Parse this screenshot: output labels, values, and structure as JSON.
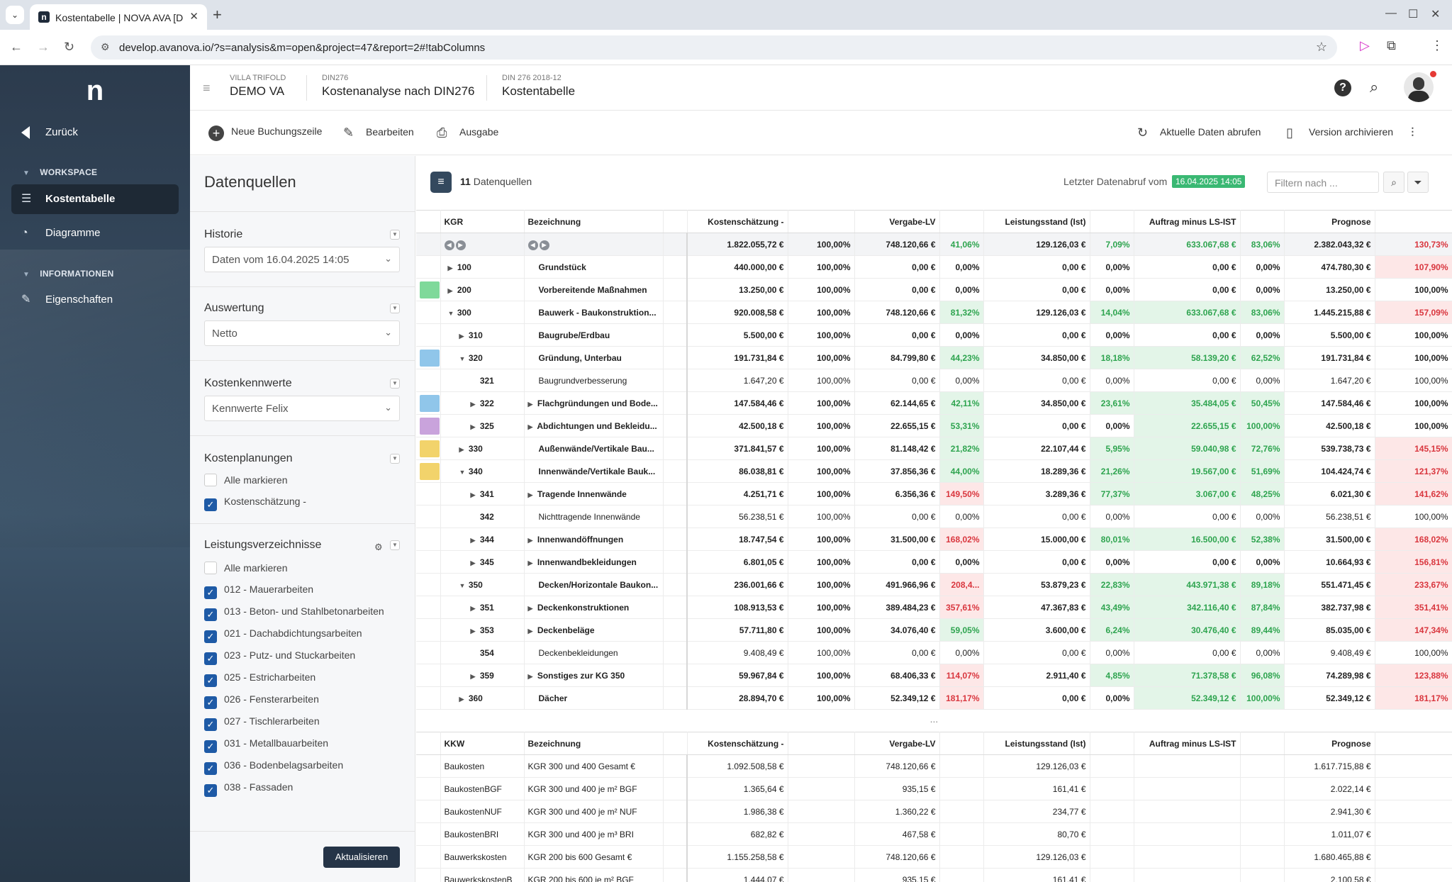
{
  "browser": {
    "tab_title": "Kostentabelle | NOVA AVA [DEV",
    "url": "develop.avanova.io/?s=analysis&m=open&project=47&report=2#!tabColumns"
  },
  "sidebar": {
    "back": "Zurück",
    "sec_workspace": "WORKSPACE",
    "sec_info": "INFORMATIONEN",
    "item_kosten": "Kostentabelle",
    "item_diagramme": "Diagramme",
    "item_eigen": "Eigenschaften"
  },
  "header": {
    "c1k": "VILLA TRIFOLD",
    "c1v": "DEMO VA",
    "c2k": "DIN276",
    "c2v": "Kostenanalyse nach DIN276",
    "c3k": "DIN 276 2018-12",
    "c3v": "Kostentabelle"
  },
  "toolbar": {
    "new_row": "Neue Buchungszeile",
    "edit": "Bearbeiten",
    "output": "Ausgabe",
    "refresh": "Aktuelle Daten abrufen",
    "archive": "Version archivieren"
  },
  "panel": {
    "title": "Datenquellen",
    "historie": "Historie",
    "historie_val": "Daten vom 16.04.2025 14:05",
    "auswertung": "Auswertung",
    "auswertung_val": "Netto",
    "kennwerte": "Kostenkennwerte",
    "kennwerte_val": "Kennwerte Felix",
    "planungen": "Kostenplanungen",
    "alle1": "Alle markieren",
    "schaetzung": "Kostenschätzung -",
    "lv": "Leistungsverzeichnisse",
    "alle2": "Alle markieren",
    "lv_items": [
      "012 - Mauerarbeiten",
      "013 - Beton- und Stahlbetonarbeiten",
      "021 - Dachabdichtungsarbeiten",
      "023 - Putz- und Stuckarbeiten",
      "025 - Estricharbeiten",
      "026 - Fensterarbeiten",
      "027 - Tischlerarbeiten",
      "031 - Metallbauarbeiten",
      "036 - Bodenbelagsarbeiten",
      "038 - Fassaden"
    ],
    "update": "Aktualisieren"
  },
  "main": {
    "ds_count": "11",
    "ds_label": "Datenquellen",
    "last_fetch": "Letzter Datenabruf vom",
    "date": "16.04.2025 14:05",
    "filter_ph": "Filtern nach ...",
    "ellipsis": "..."
  },
  "table": {
    "h": [
      "KGR",
      "Bezeichnung",
      "Kostenschätzung -",
      "Vergabe-LV",
      "Leistungsstand (Ist)",
      "Auftrag minus LS-IST",
      "Prognose"
    ],
    "sum": [
      "1.822.055,72 €",
      "100,00%",
      "748.120,66 €",
      "41,06%",
      "129.126,03 €",
      "7,09%",
      "633.067,68 €",
      "83,06%",
      "2.382.043,32 €",
      "130,73%"
    ]
  },
  "kkw": {
    "h": [
      "KKW",
      "Bezeichnung",
      "Kostenschätzung -",
      "Vergabe-LV",
      "Leistungsstand (Ist)",
      "Auftrag minus LS-IST",
      "Prognose"
    ]
  }
}
